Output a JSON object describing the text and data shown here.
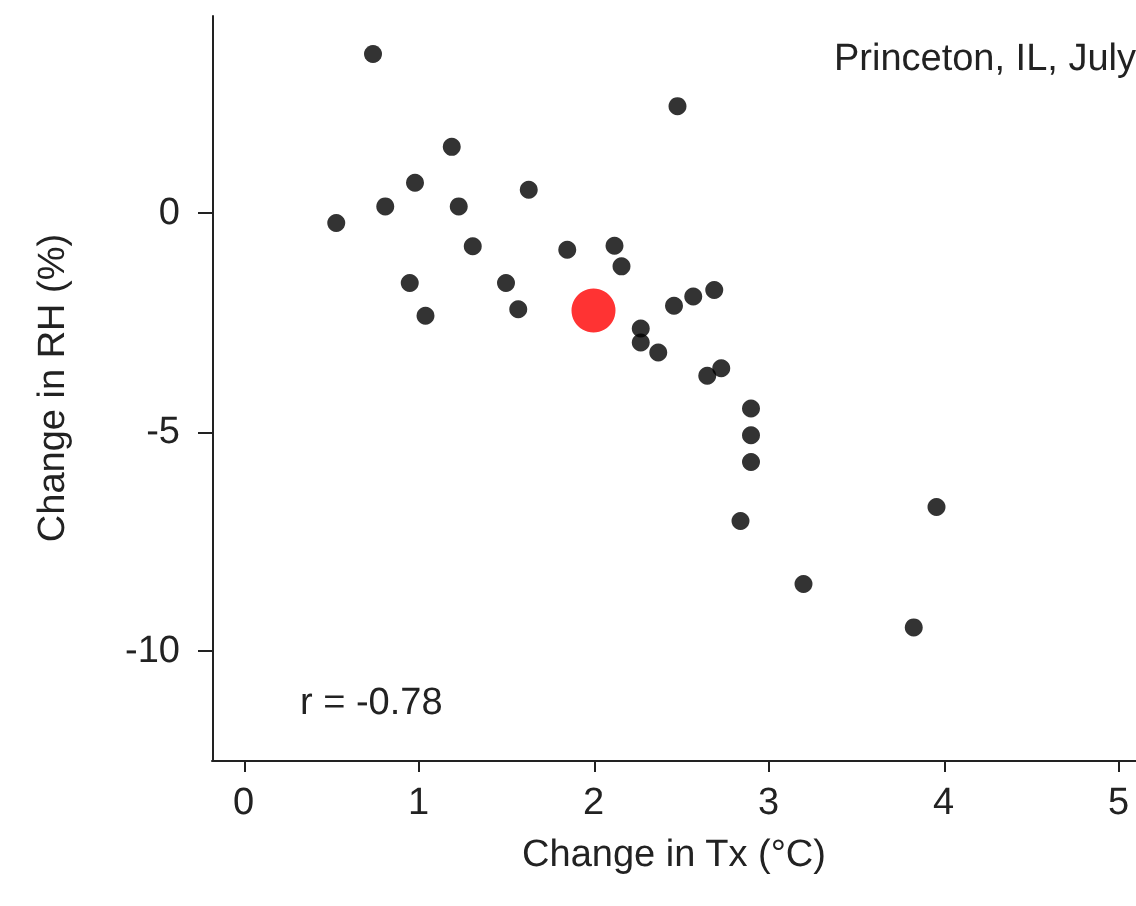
{
  "chart_data": {
    "type": "scatter",
    "xlabel": "Change in Tx (°C)",
    "ylabel": "Change in RH (%)",
    "annotations": [
      "Princeton, IL, July",
      "r = -0.78"
    ],
    "xlim": [
      -0.18,
      5.1
    ],
    "ylim": [
      -12.5,
      4.5
    ],
    "xticks": [
      0,
      1,
      2,
      3,
      4,
      5
    ],
    "yticks": [
      -10,
      -5,
      0
    ],
    "grid": false,
    "marker": "circle",
    "series": [
      {
        "color": "#000000",
        "x": [
          0.74,
          2.48,
          1.19,
          0.98,
          0.81,
          1.23,
          1.63,
          0.53,
          1.31,
          1.85,
          2.12,
          2.16,
          0.95,
          1.5,
          1.04,
          1.57,
          2.46,
          2.57,
          2.69,
          2.27,
          2.27,
          2.37,
          2.73,
          2.65,
          2.9,
          2.9,
          2.9,
          2.84,
          3.96,
          3.2,
          3.83
        ],
        "values": [
          3.63,
          2.44,
          1.51,
          0.69,
          0.15,
          0.15,
          0.53,
          -0.23,
          -0.76,
          -0.84,
          -0.75,
          -1.22,
          -1.6,
          -1.6,
          -2.35,
          -2.2,
          -2.12,
          -1.91,
          -1.76,
          -2.64,
          -2.96,
          -3.19,
          -3.55,
          -3.72,
          -4.47,
          -5.08,
          -5.69,
          -7.04,
          -6.72,
          -8.48,
          -9.47
        ]
      },
      {
        "color": "#ff0000",
        "x": [
          2.0
        ],
        "values": [
          -2.23
        ]
      }
    ]
  }
}
